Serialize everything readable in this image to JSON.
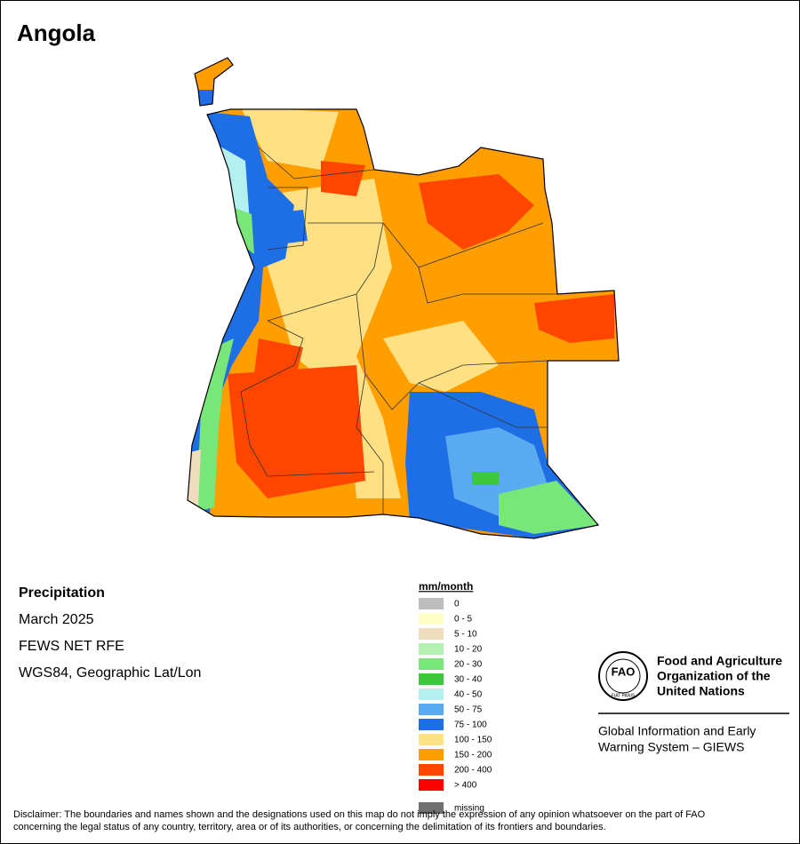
{
  "title": "Angola",
  "info": [
    "Precipitation",
    "March 2025",
    "FEWS NET RFE",
    "WGS84, Geographic Lat/Lon"
  ],
  "legend": {
    "unit": "mm/month",
    "items": [
      {
        "label": "0",
        "color": "#bdbdbd"
      },
      {
        "label": "0 - 5",
        "color": "#ffffc8"
      },
      {
        "label": "5 - 10",
        "color": "#f0dcbe"
      },
      {
        "label": "10 - 20",
        "color": "#b4f0b4"
      },
      {
        "label": "20 - 30",
        "color": "#78e678"
      },
      {
        "label": "30 - 40",
        "color": "#3cc83c"
      },
      {
        "label": "40 - 50",
        "color": "#b4f0f0"
      },
      {
        "label": "50 - 75",
        "color": "#5aaaf0"
      },
      {
        "label": "75 - 100",
        "color": "#1e6ee6"
      },
      {
        "label": "100 - 150",
        "color": "#ffe082"
      },
      {
        "label": "150 - 200",
        "color": "#ff9e00"
      },
      {
        "label": "200 - 400",
        "color": "#ff4600"
      },
      {
        "label": "> 400",
        "color": "#ff0000"
      }
    ],
    "missing": {
      "label": "missing",
      "color": "#707070"
    }
  },
  "logo": {
    "acronym": "FAO",
    "motto": "FIAT PANIS",
    "org": [
      "Food and Agriculture",
      "Organization of the",
      "United Nations"
    ],
    "system": [
      "Global Information and Early",
      "Warning System – GIEWS"
    ]
  },
  "disclaimer": [
    "Disclaimer: The boundaries and names shown and the designations used on this map do not imply the expression of any opinion whatsoever on the part of FAO",
    "concerning the legal status of any country, territory, area or of its authorities, or concerning the delimitation of its frontiers and boundaries."
  ]
}
